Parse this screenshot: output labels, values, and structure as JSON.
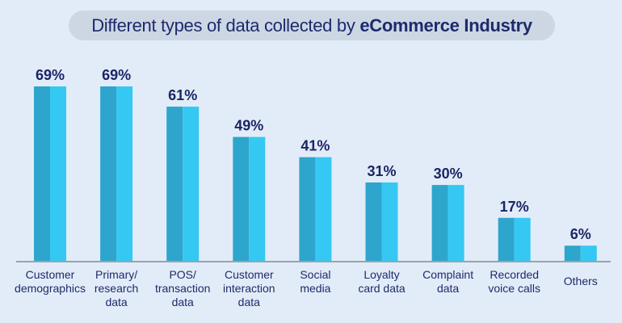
{
  "title": {
    "regular": "Different types of data collected by",
    "bold": "eCommerce Industry"
  },
  "chart_data": {
    "type": "bar",
    "title": "Different types of data collected by eCommerce Industry",
    "categories": [
      [
        "Customer",
        "demographics"
      ],
      [
        "Primary/",
        "research",
        "data"
      ],
      [
        "POS/",
        "transaction",
        "data"
      ],
      [
        "Customer",
        "interaction",
        "data"
      ],
      [
        "Social",
        "media"
      ],
      [
        "Loyalty",
        "card data"
      ],
      [
        "Complaint",
        "data"
      ],
      [
        "Recorded",
        "voice calls"
      ],
      [
        "Others"
      ]
    ],
    "values": [
      69,
      69,
      61,
      49,
      41,
      31,
      30,
      17,
      6
    ],
    "value_labels": [
      "69%",
      "69%",
      "61%",
      "49%",
      "41%",
      "31%",
      "30%",
      "17%",
      "6%"
    ],
    "ylim": [
      0,
      69
    ],
    "grid": false,
    "colors": {
      "bar_dark": "#2ea5cc",
      "bar_light": "#35c8f3",
      "text": "#1b2565",
      "axis": "#9aa3ad"
    }
  }
}
